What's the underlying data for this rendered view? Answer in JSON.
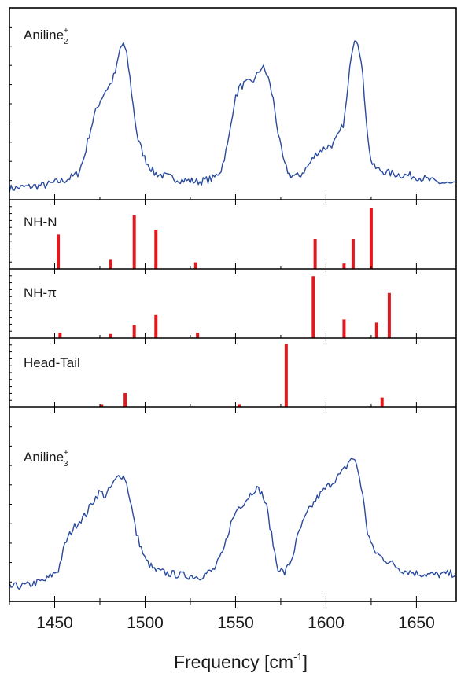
{
  "chart_data": {
    "type": "line",
    "xlabel": "Frequency [cm",
    "xlabel_sup": "-1",
    "xlabel_end": "]",
    "xlim": [
      1425,
      1672
    ],
    "xticks": [
      "1450",
      "1500",
      "1550",
      "1600",
      "1650"
    ],
    "grid": false,
    "colors": {
      "spectrum": "#2a4a9c",
      "stick": "#e0191e"
    },
    "panels": [
      {
        "label": "Aniline",
        "label_sub": "2",
        "label_sup": "+",
        "kind": "spectrum",
        "ylim": [
          0,
          1.0
        ],
        "series": [
          {
            "x": [
              1425,
              1435,
              1445,
              1452,
              1456,
              1460,
              1463,
              1466,
              1469,
              1472,
              1475,
              1478,
              1481,
              1484,
              1486,
              1488,
              1490,
              1492,
              1494,
              1496,
              1500,
              1505,
              1512,
              1520,
              1530,
              1538,
              1542,
              1546,
              1549,
              1552,
              1555,
              1558,
              1561,
              1563,
              1565,
              1568,
              1571,
              1574,
              1577,
              1580,
              1585,
              1590,
              1595,
              1600,
              1604,
              1607,
              1610,
              1612,
              1614,
              1616,
              1618,
              1620,
              1622,
              1624,
              1626,
              1629,
              1635,
              1642,
              1650,
              1660,
              1672
            ],
            "y": [
              0.01,
              0.02,
              0.03,
              0.05,
              0.06,
              0.08,
              0.1,
              0.18,
              0.32,
              0.44,
              0.52,
              0.58,
              0.62,
              0.7,
              0.82,
              0.86,
              0.78,
              0.62,
              0.44,
              0.3,
              0.18,
              0.1,
              0.08,
              0.06,
              0.05,
              0.07,
              0.12,
              0.28,
              0.5,
              0.6,
              0.62,
              0.63,
              0.65,
              0.7,
              0.72,
              0.66,
              0.52,
              0.3,
              0.15,
              0.09,
              0.08,
              0.14,
              0.22,
              0.25,
              0.27,
              0.32,
              0.4,
              0.58,
              0.8,
              0.9,
              0.86,
              0.7,
              0.45,
              0.22,
              0.14,
              0.12,
              0.1,
              0.09,
              0.08,
              0.05,
              0.03
            ]
          }
        ]
      },
      {
        "label": "NH-N",
        "kind": "stick",
        "ylim": [
          0,
          1.0
        ],
        "sticks": {
          "x": [
            1452,
            1481,
            1494,
            1506,
            1528,
            1594,
            1610,
            1615,
            1625
          ],
          "y": [
            0.52,
            0.12,
            0.83,
            0.6,
            0.08,
            0.45,
            0.06,
            0.45,
            0.95
          ]
        }
      },
      {
        "label": "NH-π",
        "kind": "stick",
        "ylim": [
          0,
          1.0
        ],
        "sticks": {
          "x": [
            1453,
            1481,
            1494,
            1506,
            1529,
            1593,
            1610,
            1628,
            1635
          ],
          "y": [
            0.06,
            0.04,
            0.18,
            0.34,
            0.06,
            0.96,
            0.27,
            0.22,
            0.69
          ]
        }
      },
      {
        "label": "Head-Tail",
        "kind": "stick",
        "ylim": [
          0,
          1.0
        ],
        "sticks": {
          "x": [
            1476,
            1489,
            1552,
            1578,
            1631
          ],
          "y": [
            0.02,
            0.2,
            0.02,
            0.98,
            0.13
          ]
        }
      },
      {
        "label": "Aniline",
        "label_sub": "3",
        "label_sup": "+",
        "kind": "spectrum",
        "ylim": [
          0,
          1.0
        ],
        "series": [
          {
            "x": [
              1425,
              1435,
              1445,
              1452,
              1456,
              1460,
              1463,
              1467,
              1471,
              1475,
              1478,
              1482,
              1486,
              1489,
              1492,
              1495,
              1500,
              1505,
              1512,
              1520,
              1530,
              1538,
              1543,
              1547,
              1551,
              1555,
              1558,
              1561,
              1564,
              1567,
              1570,
              1573,
              1577,
              1581,
              1585,
              1590,
              1595,
              1600,
              1604,
              1608,
              1611,
              1614,
              1617,
              1620,
              1623,
              1626,
              1630,
              1636,
              1642,
              1650,
              1660,
              1672
            ],
            "y": [
              0.02,
              0.03,
              0.06,
              0.12,
              0.28,
              0.36,
              0.4,
              0.44,
              0.52,
              0.58,
              0.55,
              0.62,
              0.68,
              0.66,
              0.52,
              0.34,
              0.18,
              0.12,
              0.1,
              0.09,
              0.08,
              0.12,
              0.22,
              0.38,
              0.48,
              0.52,
              0.56,
              0.6,
              0.58,
              0.5,
              0.32,
              0.14,
              0.1,
              0.18,
              0.34,
              0.46,
              0.54,
              0.6,
              0.64,
              0.68,
              0.72,
              0.78,
              0.74,
              0.58,
              0.34,
              0.24,
              0.2,
              0.16,
              0.12,
              0.1,
              0.09,
              0.1
            ]
          }
        ]
      }
    ]
  }
}
